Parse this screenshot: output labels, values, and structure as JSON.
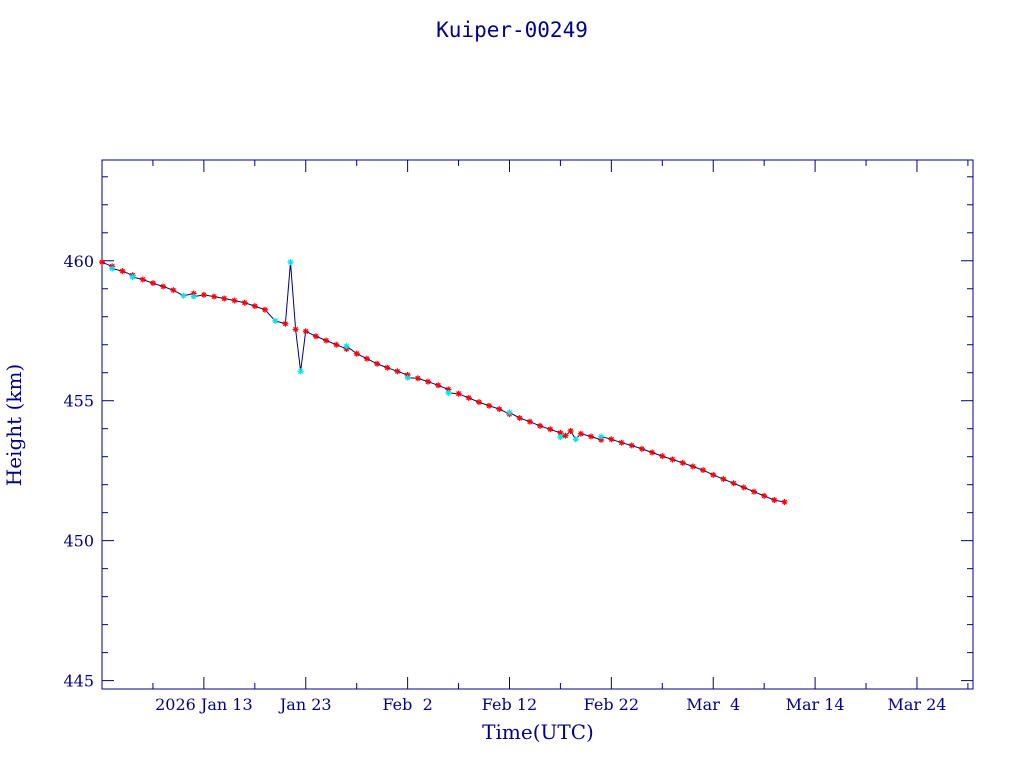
{
  "chart_data": {
    "type": "scatter",
    "title": "Kuiper-00249",
    "xlabel": "Time(UTC)",
    "ylabel": "Height (km)",
    "x_axis": "date",
    "xlim": [
      "2026-01-03T00:00",
      "2026-03-29T12:00"
    ],
    "ylim": [
      444.7,
      463.6
    ],
    "y_ticks": [
      445,
      450,
      455,
      460
    ],
    "x_tick_labels": [
      "2026 Jan 13",
      "Jan 23",
      "Feb  2",
      "Feb 12",
      "Feb 22",
      "Mar  4",
      "Mar 14",
      "Mar 24"
    ],
    "x_tick_dates": [
      "2026-01-13",
      "2026-01-23",
      "2026-02-02",
      "2026-02-12",
      "2026-02-22",
      "2026-03-04",
      "2026-03-14",
      "2026-03-24"
    ],
    "grid": false,
    "colors": {
      "axis": "#00008b",
      "line": "#00008b",
      "marker_primary": "#ff0000",
      "marker_secondary": "#00e5ee"
    },
    "series": [
      {
        "marker": "red-asterisk",
        "points": [
          [
            "2026-01-03",
            459.95
          ],
          [
            "2026-01-04",
            459.8
          ],
          [
            "2026-01-05",
            459.63
          ],
          [
            "2026-01-06",
            459.48
          ],
          [
            "2026-01-07",
            459.33
          ],
          [
            "2026-01-08",
            459.2
          ],
          [
            "2026-01-09",
            459.08
          ],
          [
            "2026-01-10",
            458.95
          ],
          [
            "2026-01-12",
            458.83
          ],
          [
            "2026-01-13",
            458.78
          ],
          [
            "2026-01-14",
            458.72
          ],
          [
            "2026-01-15",
            458.65
          ],
          [
            "2026-01-16",
            458.58
          ],
          [
            "2026-01-17",
            458.5
          ],
          [
            "2026-01-18",
            458.38
          ],
          [
            "2026-01-19",
            458.25
          ],
          [
            "2026-01-21",
            457.75
          ],
          [
            "2026-01-22",
            457.55
          ],
          [
            "2026-01-23",
            457.48
          ],
          [
            "2026-01-24",
            457.3
          ],
          [
            "2026-01-25",
            457.15
          ],
          [
            "2026-01-26",
            457.0
          ],
          [
            "2026-01-27",
            456.85
          ],
          [
            "2026-01-28",
            456.68
          ],
          [
            "2026-01-29",
            456.5
          ],
          [
            "2026-01-30",
            456.32
          ],
          [
            "2026-01-31",
            456.18
          ],
          [
            "2026-02-01",
            456.05
          ],
          [
            "2026-02-02",
            455.92
          ],
          [
            "2026-02-03",
            455.8
          ],
          [
            "2026-02-04",
            455.68
          ],
          [
            "2026-02-05",
            455.55
          ],
          [
            "2026-02-06",
            455.4
          ],
          [
            "2026-02-07",
            455.25
          ],
          [
            "2026-02-08",
            455.1
          ],
          [
            "2026-02-09",
            454.95
          ],
          [
            "2026-02-10",
            454.82
          ],
          [
            "2026-02-11",
            454.7
          ],
          [
            "2026-02-12",
            454.52
          ],
          [
            "2026-02-13",
            454.38
          ],
          [
            "2026-02-14",
            454.25
          ],
          [
            "2026-02-15",
            454.1
          ],
          [
            "2026-02-16",
            453.98
          ],
          [
            "2026-02-17",
            453.85
          ],
          [
            "2026-02-17T12:00",
            453.75
          ],
          [
            "2026-02-18",
            453.92
          ],
          [
            "2026-02-19",
            453.82
          ],
          [
            "2026-02-20",
            453.72
          ],
          [
            "2026-02-21",
            453.6
          ],
          [
            "2026-02-22",
            453.62
          ],
          [
            "2026-02-23",
            453.5
          ],
          [
            "2026-02-24",
            453.4
          ],
          [
            "2026-02-25",
            453.28
          ],
          [
            "2026-02-26",
            453.15
          ],
          [
            "2026-02-27",
            453.02
          ],
          [
            "2026-02-28",
            452.9
          ],
          [
            "2026-03-01",
            452.78
          ],
          [
            "2026-03-02",
            452.65
          ],
          [
            "2026-03-03",
            452.52
          ],
          [
            "2026-03-04",
            452.35
          ],
          [
            "2026-03-05",
            452.2
          ],
          [
            "2026-03-06",
            452.05
          ],
          [
            "2026-03-07",
            451.9
          ],
          [
            "2026-03-08",
            451.75
          ],
          [
            "2026-03-09",
            451.6
          ],
          [
            "2026-03-10",
            451.45
          ],
          [
            "2026-03-11",
            451.38
          ]
        ]
      },
      {
        "marker": "cyan-asterisk",
        "points": [
          [
            "2026-01-04",
            459.72
          ],
          [
            "2026-01-06",
            459.42
          ],
          [
            "2026-01-11",
            458.75
          ],
          [
            "2026-01-12",
            458.72
          ],
          [
            "2026-01-20",
            457.85
          ],
          [
            "2026-01-21T12:00",
            459.95
          ],
          [
            "2026-01-22T12:00",
            456.05
          ],
          [
            "2026-01-27",
            456.95
          ],
          [
            "2026-02-02",
            455.82
          ],
          [
            "2026-02-06",
            455.28
          ],
          [
            "2026-02-12",
            454.58
          ],
          [
            "2026-02-17",
            453.7
          ],
          [
            "2026-02-18T12:00",
            453.62
          ],
          [
            "2026-02-21",
            453.72
          ]
        ]
      }
    ]
  }
}
